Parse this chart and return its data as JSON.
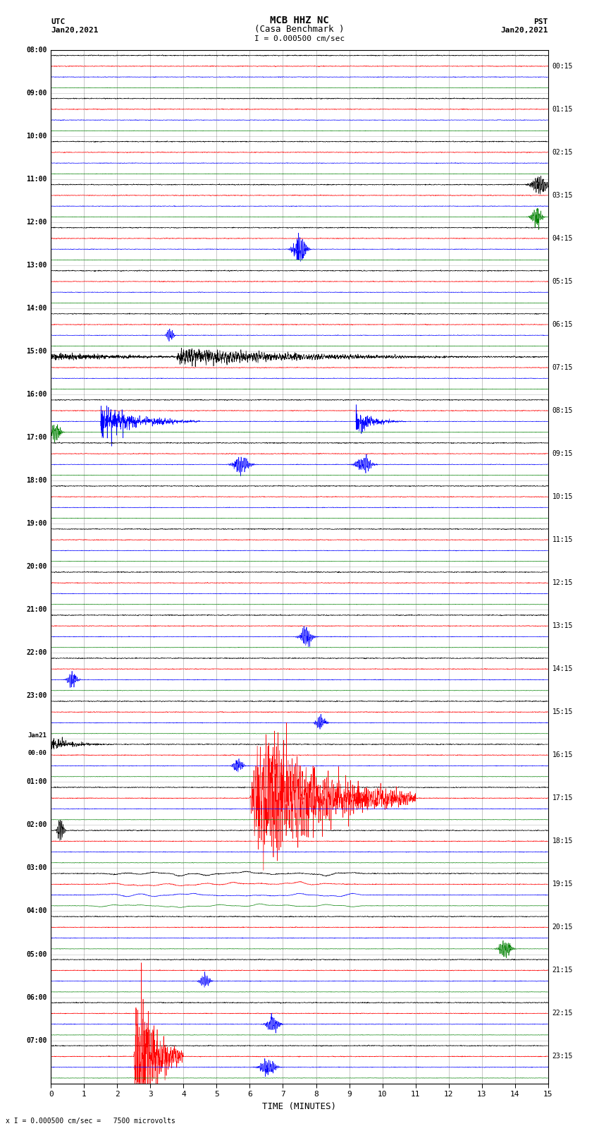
{
  "title_line1": "MCB HHZ NC",
  "title_line2": "(Casa Benchmark )",
  "scale_label": "I = 0.000500 cm/sec",
  "bottom_label": "x I = 0.000500 cm/sec =   7500 microvolts",
  "xlabel": "TIME (MINUTES)",
  "left_times": [
    "08:00",
    "09:00",
    "10:00",
    "11:00",
    "12:00",
    "13:00",
    "14:00",
    "15:00",
    "16:00",
    "17:00",
    "18:00",
    "19:00",
    "20:00",
    "21:00",
    "22:00",
    "23:00",
    "Jan21\n00:00",
    "01:00",
    "02:00",
    "03:00",
    "04:00",
    "05:00",
    "06:00",
    "07:00"
  ],
  "right_times": [
    "00:15",
    "01:15",
    "02:15",
    "03:15",
    "04:15",
    "05:15",
    "06:15",
    "07:15",
    "08:15",
    "09:15",
    "10:15",
    "11:15",
    "12:15",
    "13:15",
    "14:15",
    "15:15",
    "16:15",
    "17:15",
    "18:15",
    "19:15",
    "20:15",
    "21:15",
    "22:15",
    "23:15"
  ],
  "num_rows": 24,
  "traces_per_row": 4,
  "colors": [
    "black",
    "red",
    "blue",
    "green"
  ],
  "bg_color": "white",
  "minutes": 15,
  "noise_amps": [
    0.028,
    0.022,
    0.018,
    0.012
  ],
  "figsize": [
    8.5,
    16.13
  ],
  "dpi": 100
}
